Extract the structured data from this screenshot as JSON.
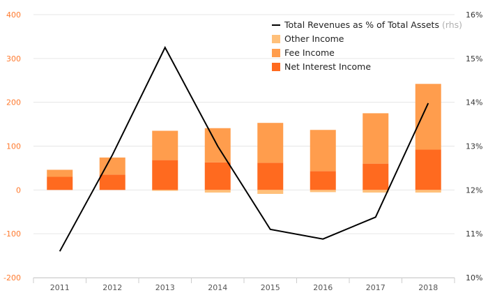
{
  "chart_data": {
    "type": "bar",
    "categories": [
      "2011",
      "2012",
      "2013",
      "2014",
      "2015",
      "2016",
      "2017",
      "2018"
    ],
    "series": [
      {
        "name": "Net Interest Income",
        "values": [
          30,
          35,
          68,
          63,
          62,
          43,
          60,
          92
        ],
        "color": "#ff6a1f"
      },
      {
        "name": "Fee Income",
        "values": [
          16,
          39,
          67,
          78,
          91,
          94,
          115,
          150
        ],
        "color": "#ff9d4d"
      },
      {
        "name": "Other Income",
        "values": [
          0,
          0,
          -2,
          -6,
          -9,
          -5,
          -6,
          -6
        ],
        "color": "#ffc07a"
      }
    ],
    "line_series": {
      "name": "Total Revenues as % of Total Assets",
      "suffix": "(rhs)",
      "values": [
        10.6,
        12.8,
        15.25,
        13.0,
        11.1,
        10.88,
        11.38,
        13.98
      ],
      "color": "#000000"
    },
    "stacked": true,
    "y_left": {
      "ticks": [
        "400",
        "300",
        "200",
        "100",
        "0",
        "-100",
        "-200"
      ],
      "ylim": [
        -200,
        400
      ]
    },
    "y_right": {
      "ticks": [
        "16%",
        "15%",
        "14%",
        "13%",
        "12%",
        "11%",
        "10%"
      ],
      "ylim": [
        10,
        16
      ]
    },
    "grid": true,
    "legend_position": "top-right"
  }
}
